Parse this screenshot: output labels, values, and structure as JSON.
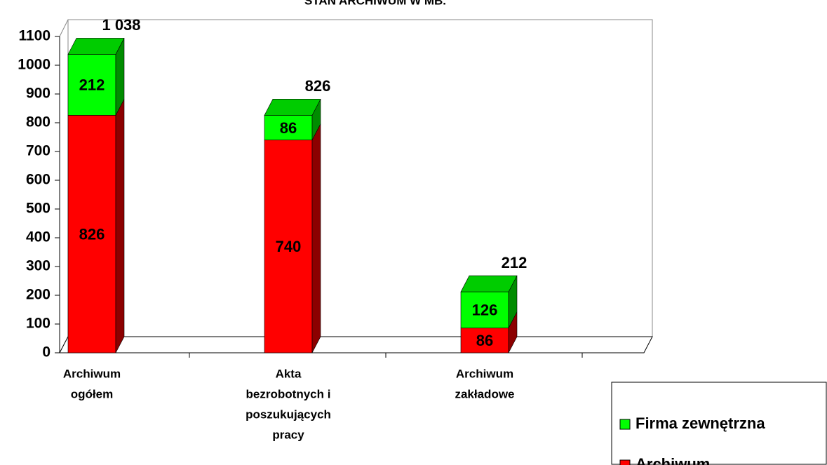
{
  "chart_data": {
    "type": "bar3d_stacked",
    "title": "STAN ARCHIWUM W MB.",
    "categories": [
      [
        "Archiwum",
        "ogółem"
      ],
      [
        "Akta",
        "bezrobotnych i",
        "poszukujących",
        "pracy"
      ],
      [
        "Archiwum",
        "zakładowe"
      ]
    ],
    "series": [
      {
        "name": "Archiwum",
        "color": "#ff0000",
        "values": [
          826,
          740,
          86
        ]
      },
      {
        "name": "Firma zewnętrzna",
        "color": "#00ff00",
        "values": [
          212,
          86,
          126
        ]
      }
    ],
    "totals": [
      1038,
      826,
      212
    ],
    "totals_labels": [
      "1 038",
      "826",
      "212"
    ],
    "ylim": [
      0,
      1100
    ],
    "yticks": [
      0,
      100,
      200,
      300,
      400,
      500,
      600,
      700,
      800,
      900,
      1000,
      1100
    ],
    "legend": "bottom-right"
  }
}
